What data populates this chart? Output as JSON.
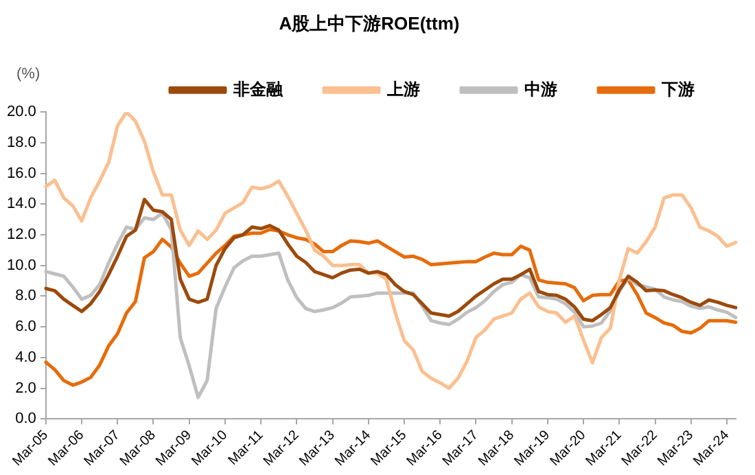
{
  "chart_data": {
    "type": "line",
    "title": "A股上中下游ROE(ttm)",
    "ylabel": "(%)",
    "categories": [
      "Mar-05",
      null,
      null,
      null,
      "Mar-06",
      null,
      null,
      null,
      "Mar-07",
      null,
      null,
      null,
      "Mar-08",
      null,
      null,
      null,
      "Mar-09",
      null,
      null,
      null,
      "Mar-10",
      null,
      null,
      null,
      "Mar-11",
      null,
      null,
      null,
      "Mar-12",
      null,
      null,
      null,
      "Mar-13",
      null,
      null,
      null,
      "Mar-14",
      null,
      null,
      null,
      "Mar-15",
      null,
      null,
      null,
      "Mar-16",
      null,
      null,
      null,
      "Mar-17",
      null,
      null,
      null,
      "Mar-18",
      null,
      null,
      null,
      "Mar-19",
      null,
      null,
      null,
      "Mar-20",
      null,
      null,
      null,
      "Mar-21",
      null,
      null,
      null,
      "Mar-22",
      null,
      null,
      null,
      "Mar-23",
      null,
      null,
      null,
      "Mar-24",
      null
    ],
    "series": [
      {
        "name": "非金融",
        "color": "#9c4a0c",
        "values": [
          8.5,
          8.35,
          7.8,
          7.4,
          7.0,
          7.5,
          8.3,
          9.4,
          10.6,
          11.9,
          12.3,
          14.3,
          13.6,
          13.5,
          13.0,
          9.1,
          7.8,
          7.6,
          7.8,
          10.0,
          11.1,
          11.8,
          12.0,
          12.5,
          12.4,
          12.6,
          12.3,
          11.4,
          10.6,
          10.2,
          9.6,
          9.4,
          9.2,
          9.5,
          9.7,
          9.75,
          9.5,
          9.6,
          9.4,
          8.75,
          8.3,
          8.1,
          7.5,
          6.9,
          6.8,
          6.7,
          7.0,
          7.5,
          8.0,
          8.4,
          8.8,
          9.1,
          9.1,
          9.4,
          9.75,
          8.3,
          8.1,
          8.05,
          7.8,
          7.3,
          6.5,
          6.4,
          6.8,
          7.25,
          8.4,
          9.3,
          8.9,
          8.35,
          8.4,
          8.35,
          8.1,
          7.9,
          7.6,
          7.4,
          7.75,
          7.6,
          7.4,
          7.25
        ]
      },
      {
        "name": "上游",
        "color": "#fbbf90",
        "values": [
          15.15,
          15.55,
          14.4,
          13.9,
          12.9,
          14.4,
          15.5,
          16.7,
          19.1,
          20.0,
          19.4,
          18.1,
          16.1,
          14.6,
          14.6,
          12.3,
          11.3,
          12.25,
          11.7,
          12.3,
          13.4,
          13.75,
          14.1,
          15.1,
          15.0,
          15.15,
          15.5,
          14.5,
          13.4,
          12.3,
          11.0,
          10.6,
          10.0,
          10.0,
          10.05,
          10.05,
          9.5,
          9.5,
          9.1,
          6.9,
          5.1,
          4.5,
          3.1,
          2.65,
          2.35,
          2.0,
          2.65,
          3.75,
          5.3,
          5.8,
          6.5,
          6.7,
          6.9,
          7.8,
          8.2,
          7.3,
          7.0,
          6.9,
          6.3,
          6.7,
          5.15,
          3.65,
          5.3,
          5.9,
          9.05,
          11.1,
          10.8,
          11.55,
          12.5,
          14.4,
          14.6,
          14.6,
          13.75,
          12.5,
          12.25,
          11.9,
          11.25,
          11.5
        ]
      },
      {
        "name": "中游",
        "color": "#bfbfbf",
        "values": [
          9.6,
          9.45,
          9.3,
          8.6,
          7.8,
          8.05,
          8.75,
          10.15,
          11.4,
          12.5,
          12.35,
          13.1,
          13.0,
          13.4,
          12.35,
          5.3,
          3.45,
          1.4,
          2.5,
          7.2,
          8.6,
          9.85,
          10.3,
          10.6,
          10.6,
          10.7,
          10.8,
          9.05,
          7.9,
          7.2,
          7.0,
          7.1,
          7.25,
          7.55,
          7.95,
          8.0,
          8.05,
          8.2,
          8.2,
          8.2,
          8.2,
          8.2,
          7.35,
          6.4,
          6.25,
          6.15,
          6.5,
          6.95,
          7.25,
          7.7,
          8.3,
          8.75,
          8.9,
          9.4,
          9.2,
          7.95,
          7.9,
          7.8,
          7.5,
          6.95,
          6.0,
          6.05,
          6.25,
          7.05,
          8.3,
          9.2,
          8.75,
          8.6,
          8.45,
          7.95,
          7.75,
          7.65,
          7.35,
          7.2,
          7.3,
          7.1,
          6.95,
          6.6
        ]
      },
      {
        "name": "下游",
        "color": "#e66c0c",
        "values": [
          3.7,
          3.2,
          2.5,
          2.2,
          2.4,
          2.7,
          3.5,
          4.75,
          5.55,
          6.9,
          7.65,
          10.5,
          10.9,
          11.7,
          11.2,
          10.15,
          9.3,
          9.5,
          10.15,
          10.8,
          11.3,
          11.9,
          12.0,
          12.1,
          12.1,
          12.35,
          12.25,
          12.0,
          11.8,
          11.7,
          11.4,
          10.9,
          10.9,
          11.3,
          11.6,
          11.55,
          11.45,
          11.6,
          11.25,
          10.9,
          10.55,
          10.6,
          10.4,
          10.05,
          10.1,
          10.15,
          10.2,
          10.25,
          10.25,
          10.55,
          10.8,
          10.7,
          10.7,
          11.25,
          11.0,
          9.05,
          8.9,
          8.85,
          8.8,
          8.55,
          7.7,
          8.05,
          8.1,
          8.1,
          9.0,
          9.05,
          8.1,
          6.9,
          6.6,
          6.25,
          6.1,
          5.7,
          5.6,
          5.9,
          6.4,
          6.4,
          6.4,
          6.3
        ]
      }
    ],
    "ylim": [
      0,
      20
    ],
    "yticks": [
      {
        "value": 0,
        "label": "0.0"
      },
      {
        "value": 2,
        "label": "2.0"
      },
      {
        "value": 4,
        "label": "4.0"
      },
      {
        "value": 6,
        "label": "6.0"
      },
      {
        "value": 8,
        "label": "8.0"
      },
      {
        "value": 10,
        "label": "10.0"
      },
      {
        "value": 12,
        "label": "12.0"
      },
      {
        "value": 14,
        "label": "14.0"
      },
      {
        "value": 16,
        "label": "16.0"
      },
      {
        "value": 18,
        "label": "18.0"
      },
      {
        "value": 20,
        "label": "20.0"
      }
    ],
    "grid": false,
    "legend": "top",
    "marker": "none",
    "line_style": "solid"
  }
}
